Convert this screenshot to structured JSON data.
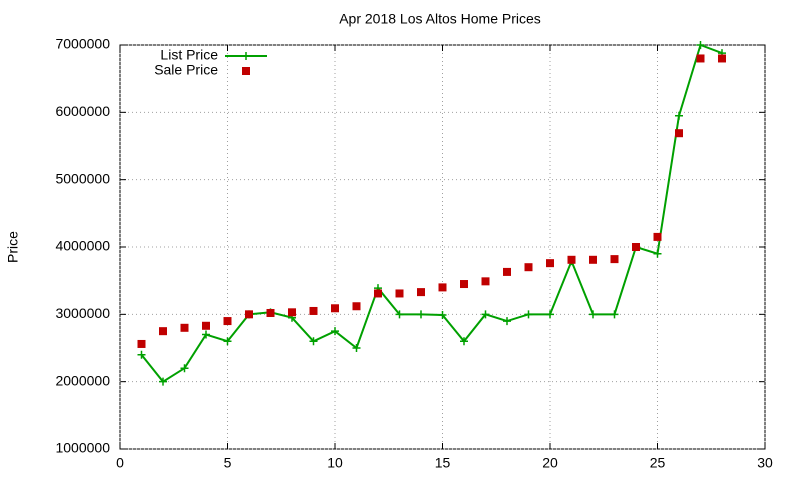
{
  "chart_data": {
    "type": "line",
    "title": "Apr 2018 Los Altos Home Prices",
    "y_label": "Price",
    "x": [
      1,
      2,
      3,
      4,
      5,
      6,
      7,
      8,
      9,
      10,
      11,
      12,
      13,
      14,
      15,
      16,
      17,
      18,
      19,
      20,
      21,
      22,
      23,
      24,
      25,
      26,
      27,
      28
    ],
    "series": [
      {
        "name": "List Price",
        "color": "#00a000",
        "style": "linespoints",
        "values": [
          2400000,
          2000000,
          2200000,
          2700000,
          2600000,
          3000000,
          3030000,
          2950000,
          2600000,
          2750000,
          2500000,
          3390000,
          3000000,
          3000000,
          2990000,
          2600000,
          3000000,
          2900000,
          3000000,
          3000000,
          3790000,
          3000000,
          3000000,
          4000000,
          3900000,
          5950000,
          7000000,
          6880000
        ]
      },
      {
        "name": "Sale Price",
        "color": "#c00000",
        "style": "points",
        "values": [
          2560000,
          2750000,
          2800000,
          2830000,
          2900000,
          3000000,
          3020000,
          3030000,
          3050000,
          3090000,
          3120000,
          3310000,
          3310000,
          3330000,
          3400000,
          3450000,
          3490000,
          3630000,
          3700000,
          3760000,
          3810000,
          3810000,
          3820000,
          4000000,
          4150000,
          5690000,
          6800000,
          6800000
        ]
      }
    ],
    "xlim": [
      0,
      30
    ],
    "xticks": [
      0,
      5,
      10,
      15,
      20,
      25,
      30
    ],
    "ylim": [
      1000000,
      7000000
    ],
    "yticks": [
      1000000,
      2000000,
      3000000,
      4000000,
      5000000,
      6000000,
      7000000
    ],
    "grid": true,
    "legend": "top-left"
  }
}
